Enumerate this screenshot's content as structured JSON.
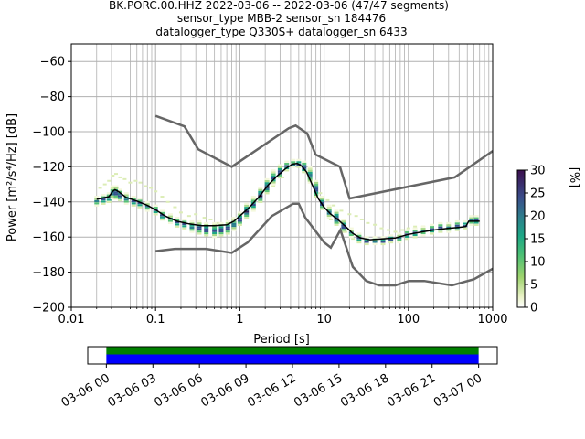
{
  "chart_data": {
    "type": "ppsd",
    "title_lines": [
      "BK.PORC.00.HHZ   2022-03-06 -- 2022-03-06  (47/47 segments)",
      "sensor_type MBB-2 sensor_sn 184476",
      "datalogger_type Q330S+ datalogger_sn 6433"
    ],
    "xlabel": "Period [s]",
    "ylabel": "Power [m²/s⁴/Hz] [dB]",
    "xscale": "log",
    "xlim": [
      0.01,
      1000
    ],
    "ylim": [
      -200,
      -50
    ],
    "xticks": [
      0.01,
      0.1,
      1,
      10,
      100,
      1000
    ],
    "xtick_labels": [
      "0.01",
      "0.1",
      "1",
      "10",
      "100",
      "1000"
    ],
    "yticks": [
      -200,
      -180,
      -160,
      -140,
      -120,
      -100,
      -80,
      -60
    ],
    "ytick_labels": [
      "−200",
      "−180",
      "−160",
      "−140",
      "−120",
      "−100",
      "−80",
      "−60"
    ],
    "grid": true,
    "new_high_noise_model": [
      [
        0.1,
        -91
      ],
      [
        0.22,
        -97
      ],
      [
        0.32,
        -110
      ],
      [
        0.8,
        -120
      ],
      [
        3.8,
        -98
      ],
      [
        4.6,
        -96.5
      ],
      [
        6.3,
        -101
      ],
      [
        7.9,
        -113
      ],
      [
        15.4,
        -120
      ],
      [
        20,
        -138
      ],
      [
        354,
        -126
      ],
      [
        1000,
        -111
      ]
    ],
    "new_low_noise_model": [
      [
        0.1,
        -168
      ],
      [
        0.17,
        -166.7
      ],
      [
        0.4,
        -166.7
      ],
      [
        0.8,
        -169
      ],
      [
        1.24,
        -163
      ],
      [
        2.4,
        -148
      ],
      [
        4.3,
        -141
      ],
      [
        5,
        -141
      ],
      [
        6,
        -149
      ],
      [
        10,
        -163
      ],
      [
        12,
        -166
      ],
      [
        15.6,
        -156
      ],
      [
        21.9,
        -177
      ],
      [
        31.6,
        -185
      ],
      [
        45,
        -187.5
      ],
      [
        70,
        -187.5
      ],
      [
        101,
        -185
      ],
      [
        154,
        -185
      ],
      [
        328,
        -187.5
      ],
      [
        600,
        -184
      ],
      [
        1000,
        -178
      ]
    ],
    "mean_curve": [
      [
        0.02,
        -138.5
      ],
      [
        0.025,
        -137.5
      ],
      [
        0.028,
        -137
      ],
      [
        0.031,
        -134
      ],
      [
        0.033,
        -133
      ],
      [
        0.036,
        -134
      ],
      [
        0.045,
        -137.5
      ],
      [
        0.06,
        -139.5
      ],
      [
        0.08,
        -142
      ],
      [
        0.1,
        -144.5
      ],
      [
        0.13,
        -148
      ],
      [
        0.18,
        -151
      ],
      [
        0.25,
        -152.5
      ],
      [
        0.35,
        -153.5
      ],
      [
        0.5,
        -153.5
      ],
      [
        0.7,
        -153
      ],
      [
        0.85,
        -151
      ],
      [
        1,
        -148
      ],
      [
        1.3,
        -143
      ],
      [
        1.7,
        -137
      ],
      [
        2.2,
        -130
      ],
      [
        2.8,
        -125
      ],
      [
        3.5,
        -121
      ],
      [
        4.2,
        -118.5
      ],
      [
        4.8,
        -118
      ],
      [
        5.4,
        -119.5
      ],
      [
        6.2,
        -123
      ],
      [
        7.2,
        -130
      ],
      [
        8.5,
        -138
      ],
      [
        10,
        -143
      ],
      [
        12,
        -147
      ],
      [
        14.5,
        -150
      ],
      [
        18,
        -154
      ],
      [
        22,
        -158
      ],
      [
        27,
        -160.5
      ],
      [
        35,
        -161.5
      ],
      [
        50,
        -161
      ],
      [
        70,
        -160.5
      ],
      [
        100,
        -158.5
      ],
      [
        150,
        -157
      ],
      [
        200,
        -156
      ],
      [
        300,
        -155
      ],
      [
        400,
        -154.5
      ],
      [
        480,
        -154
      ],
      [
        520,
        -151
      ],
      [
        700,
        -151
      ]
    ],
    "histogram_columns": [
      [
        0.02,
        -142,
        -137
      ],
      [
        0.024,
        -141,
        -136
      ],
      [
        0.028,
        -140,
        -135
      ],
      [
        0.031,
        -138,
        -131
      ],
      [
        0.034,
        -138,
        -131
      ],
      [
        0.038,
        -139,
        -133
      ],
      [
        0.045,
        -141,
        -135
      ],
      [
        0.055,
        -142,
        -137
      ],
      [
        0.065,
        -143,
        -138
      ],
      [
        0.08,
        -145,
        -140
      ],
      [
        0.1,
        -147,
        -142
      ],
      [
        0.12,
        -150,
        -145
      ],
      [
        0.15,
        -152,
        -147
      ],
      [
        0.18,
        -154,
        -149
      ],
      [
        0.22,
        -155,
        -150
      ],
      [
        0.27,
        -157,
        -151
      ],
      [
        0.33,
        -158,
        -151
      ],
      [
        0.4,
        -159,
        -152
      ],
      [
        0.5,
        -160,
        -152
      ],
      [
        0.6,
        -159,
        -152
      ],
      [
        0.72,
        -158,
        -151
      ],
      [
        0.85,
        -156,
        -149
      ],
      [
        1,
        -153,
        -146
      ],
      [
        1.2,
        -149,
        -141
      ],
      [
        1.45,
        -145,
        -137
      ],
      [
        1.75,
        -140,
        -132
      ],
      [
        2.1,
        -135,
        -127
      ],
      [
        2.5,
        -130,
        -122
      ],
      [
        3,
        -126,
        -119
      ],
      [
        3.6,
        -122,
        -117
      ],
      [
        4.3,
        -120,
        -116
      ],
      [
        5,
        -120,
        -116
      ],
      [
        5.8,
        -123,
        -117
      ],
      [
        6.8,
        -129,
        -120
      ],
      [
        8,
        -137,
        -128
      ],
      [
        9.5,
        -144,
        -137
      ],
      [
        11.5,
        -149,
        -142
      ],
      [
        14,
        -153,
        -145
      ],
      [
        17,
        -157,
        -150
      ],
      [
        21,
        -160,
        -155
      ],
      [
        26,
        -163,
        -158
      ],
      [
        32,
        -164,
        -160
      ],
      [
        40,
        -164,
        -160
      ],
      [
        50,
        -164,
        -160
      ],
      [
        62,
        -163,
        -159
      ],
      [
        78,
        -163,
        -158
      ],
      [
        97,
        -161,
        -156
      ],
      [
        120,
        -160,
        -155
      ],
      [
        150,
        -159,
        -154
      ],
      [
        190,
        -158,
        -153
      ],
      [
        240,
        -157,
        -152
      ],
      [
        300,
        -157,
        -152
      ],
      [
        380,
        -156,
        -151
      ],
      [
        470,
        -155,
        -151
      ],
      [
        560,
        -153,
        -148
      ],
      [
        640,
        -153,
        -148
      ]
    ],
    "scatter_cloud": [
      [
        0.022,
        -132
      ],
      [
        0.025,
        -130
      ],
      [
        0.028,
        -128
      ],
      [
        0.031,
        -125
      ],
      [
        0.034,
        -124
      ],
      [
        0.038,
        -126
      ],
      [
        0.043,
        -127
      ],
      [
        0.05,
        -129
      ],
      [
        0.058,
        -128
      ],
      [
        0.066,
        -129
      ],
      [
        0.076,
        -131
      ],
      [
        0.088,
        -132
      ],
      [
        0.1,
        -134
      ],
      [
        0.12,
        -137
      ],
      [
        0.14,
        -140
      ],
      [
        0.17,
        -143
      ],
      [
        0.2,
        -146
      ],
      [
        0.25,
        -148
      ],
      [
        0.3,
        -147
      ],
      [
        0.38,
        -149
      ],
      [
        0.45,
        -150
      ],
      [
        0.55,
        -152
      ],
      [
        2.5,
        -131
      ],
      [
        3.2,
        -126
      ],
      [
        9,
        -135
      ],
      [
        11,
        -139
      ],
      [
        13,
        -142
      ],
      [
        16,
        -145
      ],
      [
        20,
        -147
      ],
      [
        24,
        -148
      ],
      [
        28,
        -150
      ],
      [
        33,
        -152
      ],
      [
        40,
        -153
      ],
      [
        48,
        -155
      ],
      [
        58,
        -156
      ],
      [
        70,
        -157
      ],
      [
        85,
        -156
      ],
      [
        100,
        -155
      ],
      [
        120,
        -154
      ],
      [
        150,
        -154
      ],
      [
        12,
        -150
      ],
      [
        15,
        -152
      ],
      [
        18,
        -157
      ],
      [
        22,
        -161
      ],
      [
        26,
        -163
      ]
    ],
    "colorbar": {
      "label": "[%]",
      "ticks": [
        0,
        5,
        10,
        15,
        20,
        25,
        30
      ],
      "tick_labels": [
        "0",
        "5",
        "10",
        "15",
        "20",
        "25",
        "30"
      ],
      "range": [
        0,
        30
      ],
      "colormap": "pqlx"
    },
    "timeline": {
      "start_label": "03-06 00",
      "tick_labels": [
        "03-06 00",
        "03-06 03",
        "03-06 06",
        "03-06 09",
        "03-06 12",
        "03-06 15",
        "03-06 18",
        "03-06 21",
        "03-07 00"
      ],
      "tick_hours": [
        0,
        3,
        6,
        9,
        12,
        15,
        18,
        21,
        24
      ],
      "axis_hours": [
        -1.2,
        25.2
      ],
      "coverage_hours": [
        0,
        24
      ],
      "bar_colors": {
        "upper": "#008000",
        "lower": "#0000ff"
      }
    },
    "colors": {
      "noise_models": "#666666",
      "mean": "#000000",
      "grid": "#b0b0b0"
    }
  }
}
